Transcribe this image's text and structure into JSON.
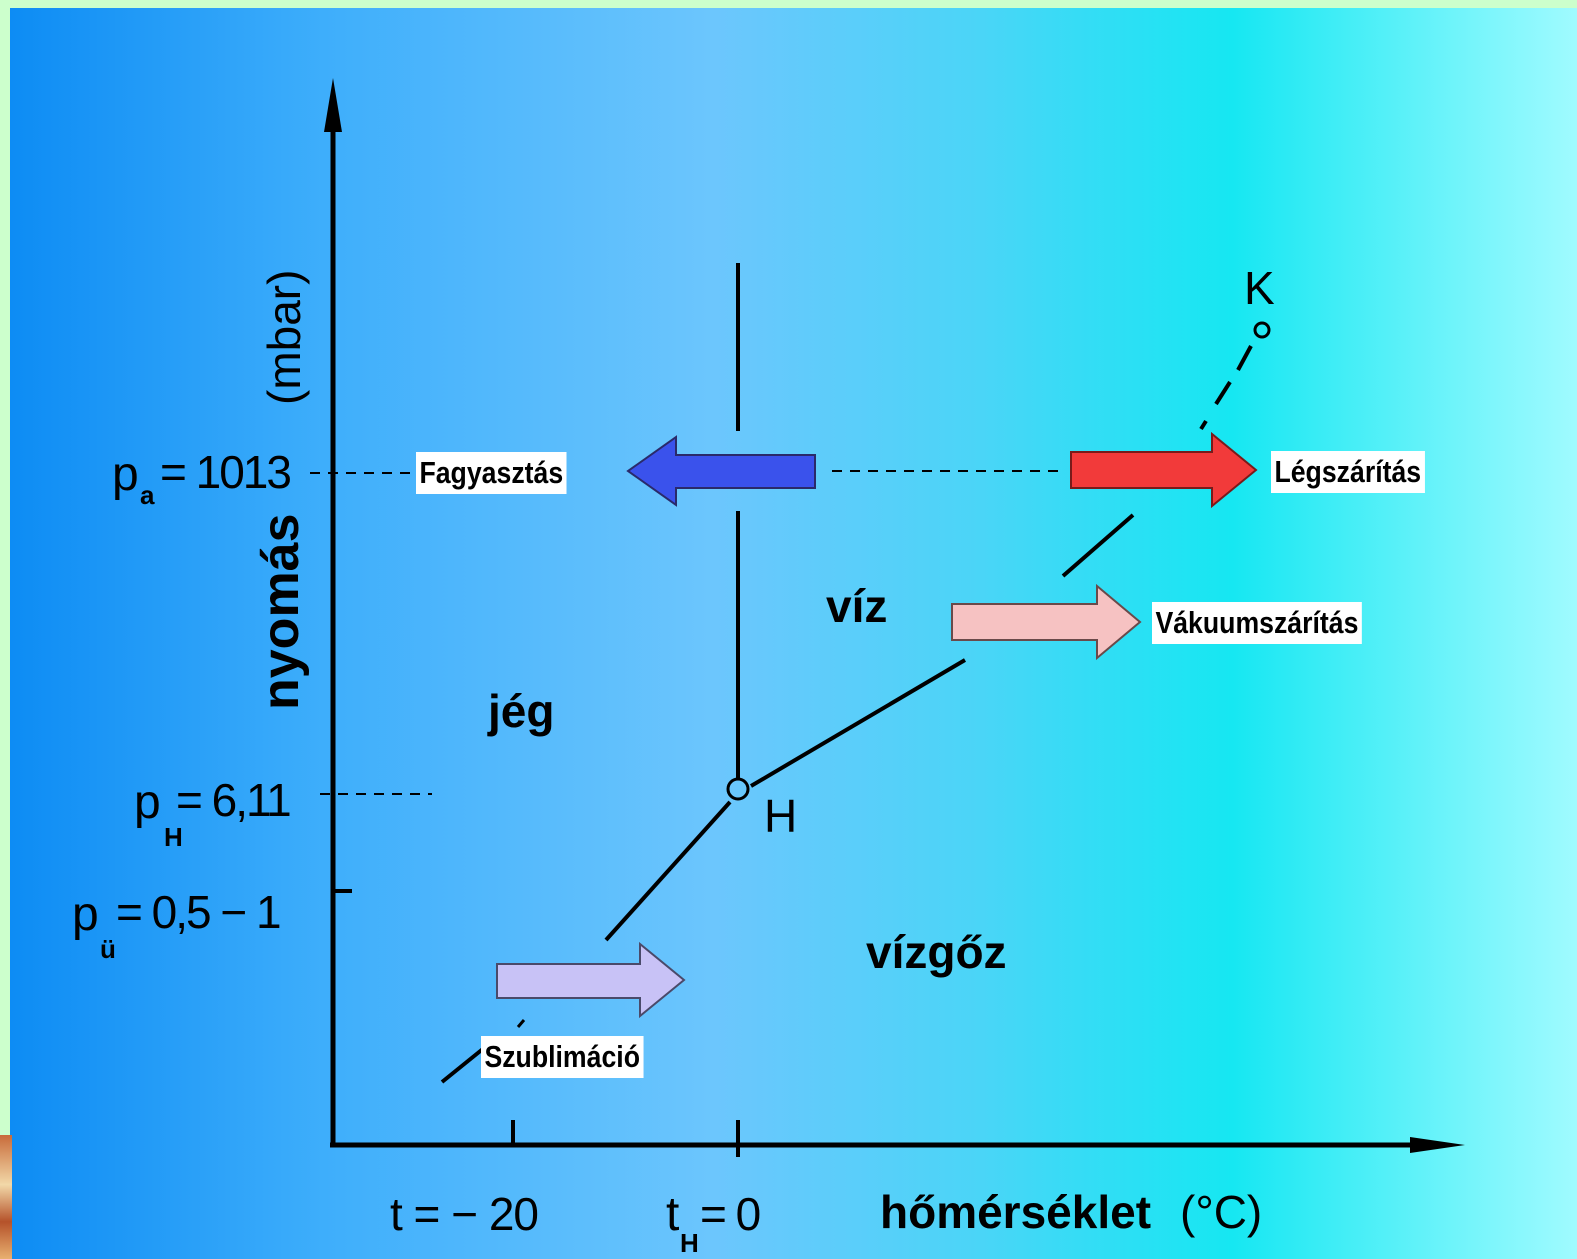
{
  "axes": {
    "y_label": "nyomás",
    "y_unit": "(mbar)",
    "x_label": "hőmérséklet",
    "x_unit": "(°C)"
  },
  "y_ticks": {
    "pa": {
      "sym": "p",
      "sub": "a",
      "value": "= 1013"
    },
    "pH": {
      "sym": "p",
      "sub": "H",
      "value": "= 6,11"
    },
    "pu": {
      "sym": "p",
      "sub": "ü",
      "value": "= 0,5 − 1"
    }
  },
  "x_ticks": {
    "t20": "t = − 20",
    "tH": {
      "sym": "t",
      "sub": "H",
      "value": "= 0"
    }
  },
  "regions": {
    "ice": "jég",
    "water": "víz",
    "vapor": "vízgőz"
  },
  "points": {
    "triple": "H",
    "critical": "K"
  },
  "processes": {
    "freezing": "Fagyasztás",
    "air_drying": "Légszárítás",
    "vacuum_drying": "Vákuumszárítás",
    "sublimation": "Szublimáció"
  },
  "colors": {
    "freezing_arrow": "#3a52ec",
    "air_drying_arrow": "#f23a3a",
    "vacuum_drying_arrow": "#f6c2c2",
    "sublimation_arrow": "#c8c2f6"
  }
}
